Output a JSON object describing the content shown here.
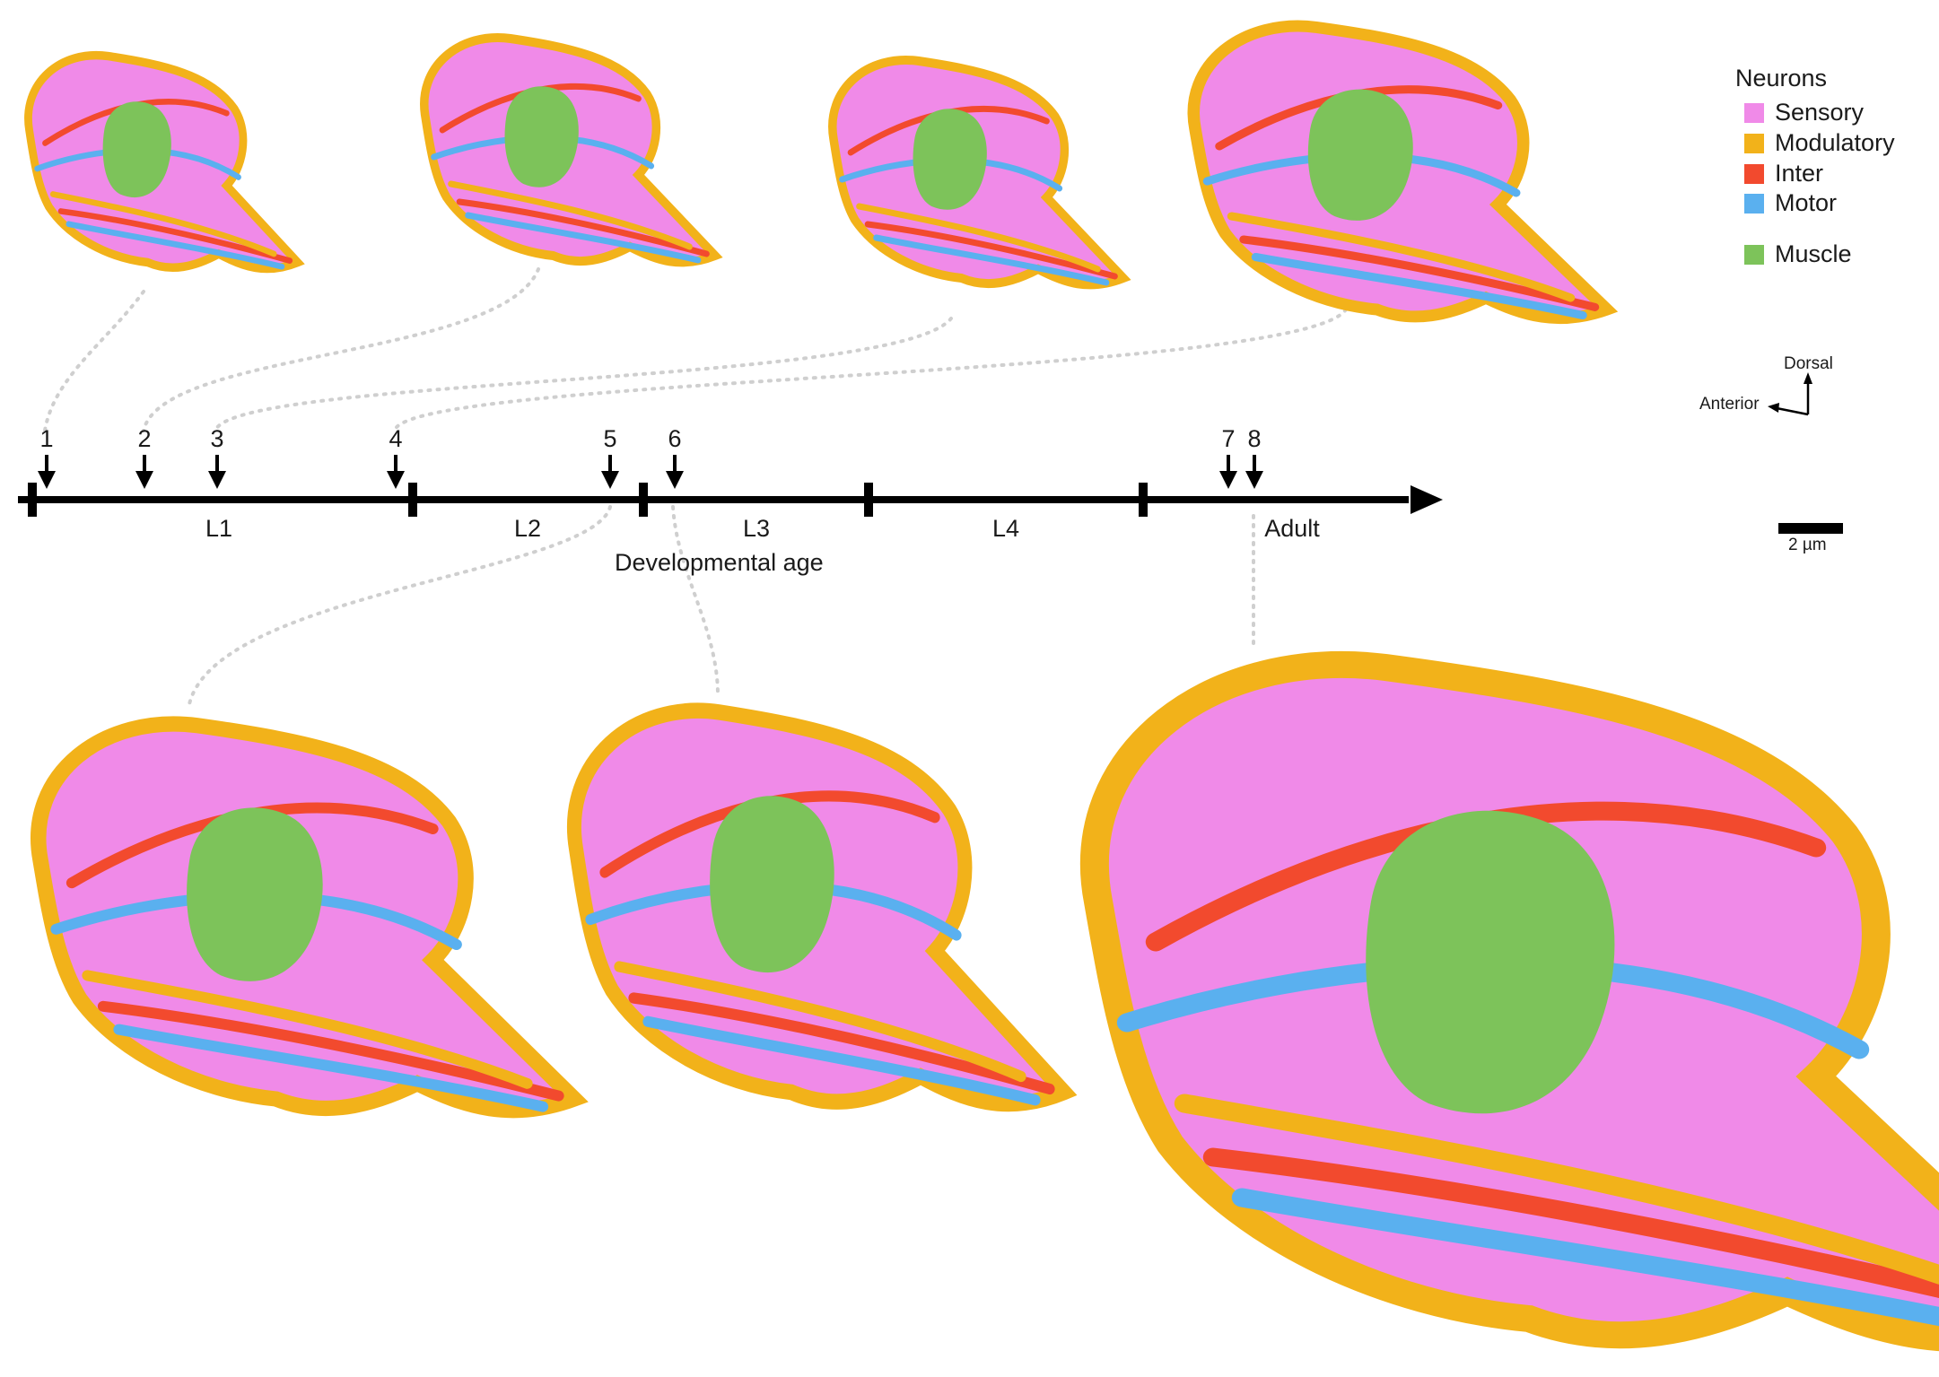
{
  "legend": {
    "title": "Neurons",
    "items": [
      {
        "label": "Sensory",
        "color": "#f08ae8"
      },
      {
        "label": "Modulatory",
        "color": "#f2b21a"
      },
      {
        "label": "Inter",
        "color": "#f24a2e"
      },
      {
        "label": "Motor",
        "color": "#5ab0ef"
      },
      {
        "label": "Muscle",
        "color": "#7dc35a"
      }
    ]
  },
  "orientation": {
    "dorsal": "Dorsal",
    "anterior": "Anterior"
  },
  "scale_bar": {
    "label": "2 µm"
  },
  "timeline": {
    "axis_label": "Developmental age",
    "stages": [
      "L1",
      "L2",
      "L3",
      "L4",
      "Adult"
    ],
    "datasets": [
      "1",
      "2",
      "3",
      "4",
      "5",
      "6",
      "7",
      "8"
    ]
  },
  "colors": {
    "sensory": "#f08ae8",
    "modulatory": "#f2b21a",
    "inter": "#f24a2e",
    "motor": "#5ab0ef",
    "muscle": "#7dc35a",
    "connector": "#cfcfcf",
    "axis": "#000000"
  }
}
